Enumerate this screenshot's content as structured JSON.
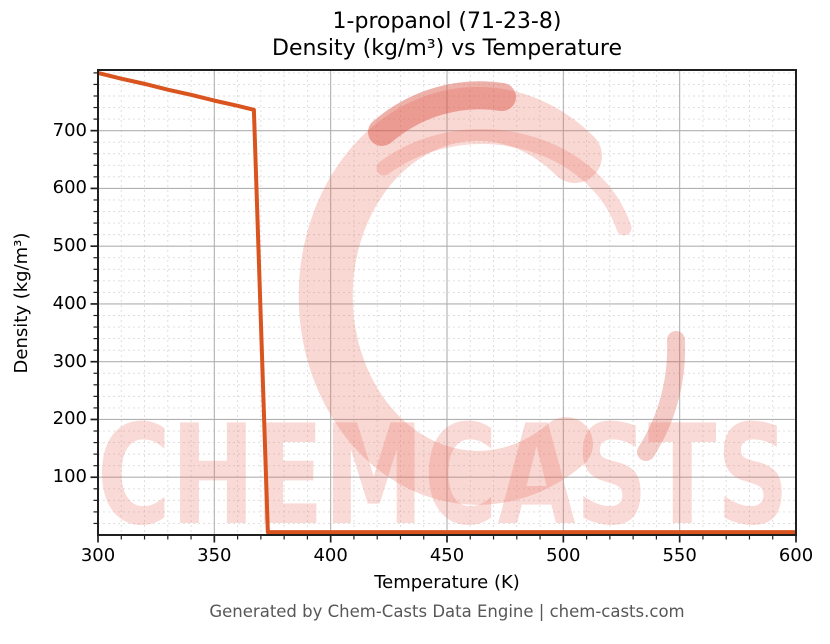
{
  "title": {
    "line1": "1-propanol (71-23-8)",
    "line2": "Density (kg/m³) vs Temperature"
  },
  "footer": {
    "text": "Generated by Chem-Casts Data Engine | chem-casts.com"
  },
  "watermark": {
    "text": "CHEMCASTS",
    "logo": "chemcasts-c-swoosh",
    "color": "#e8715f"
  },
  "colors": {
    "line": "#d9541e",
    "grid_major": "#b1b1b1",
    "grid_minor": "#dcdcdc",
    "spine": "#1f1f1f",
    "tick": "#1f1f1f",
    "title_text": "#000000",
    "tick_label": "#000000",
    "footer_text": "#575757",
    "watermark": "#e8715f",
    "watermark_accent": "#d95243"
  },
  "chart_data": {
    "type": "line",
    "title_lines": [
      "1-propanol (71-23-8)",
      "Density (kg/m³) vs Temperature"
    ],
    "xlabel": "Temperature (K)",
    "ylabel": "Density (kg/m³)",
    "x": [
      300,
      310,
      320,
      330,
      340,
      350,
      360,
      367,
      373,
      400,
      450,
      500,
      550,
      600
    ],
    "y": [
      800,
      790,
      781,
      771,
      762,
      752,
      743,
      736,
      5,
      5,
      5,
      5,
      5,
      5
    ],
    "xlim": [
      300,
      600
    ],
    "ylim": [
      0,
      805
    ],
    "x_ticks": [
      300,
      350,
      400,
      450,
      500,
      550,
      600
    ],
    "y_ticks": [
      100,
      200,
      300,
      400,
      500,
      600,
      700
    ],
    "x_minor_step": 10,
    "y_minor_step": 20,
    "grid": "major solid + minor dashed",
    "legend": false,
    "line_width": 4,
    "annotations": {
      "liquid_branch": "density falls ~800 to ~736 kg/m³ between 300 K and 367 K",
      "phase_drop": "near-vertical drop to ~5 kg/m³ at ~373 K (boiling)",
      "vapor_branch": "flat near 0 from 373 K to 600 K"
    }
  }
}
